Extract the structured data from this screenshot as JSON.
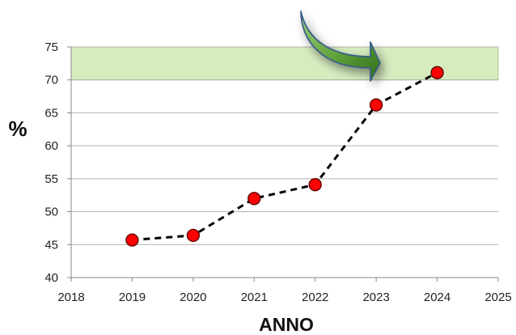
{
  "chart_data": {
    "type": "line",
    "xlabel": "ANNO",
    "ylabel": "%",
    "xlim": [
      2018,
      2025
    ],
    "ylim": [
      40,
      75
    ],
    "x_ticks": [
      2018,
      2019,
      2020,
      2021,
      2022,
      2023,
      2024,
      2025
    ],
    "y_ticks": [
      40,
      45,
      50,
      55,
      60,
      65,
      70,
      75
    ],
    "grid": true,
    "target_band": {
      "from": 70,
      "to": 75,
      "color": "#d6ecbf"
    },
    "series": [
      {
        "x": [
          2019,
          2020,
          2021,
          2022,
          2023,
          2024
        ],
        "values": [
          45.7,
          46.4,
          52.0,
          54.1,
          66.2,
          71.1
        ],
        "line_color": "#000000",
        "line_style": "dashed",
        "marker_color": "#ff0000"
      }
    ],
    "annotations": [
      {
        "type": "curved-arrow",
        "points_to": "target-band",
        "color": "#4a8a2a"
      }
    ]
  }
}
